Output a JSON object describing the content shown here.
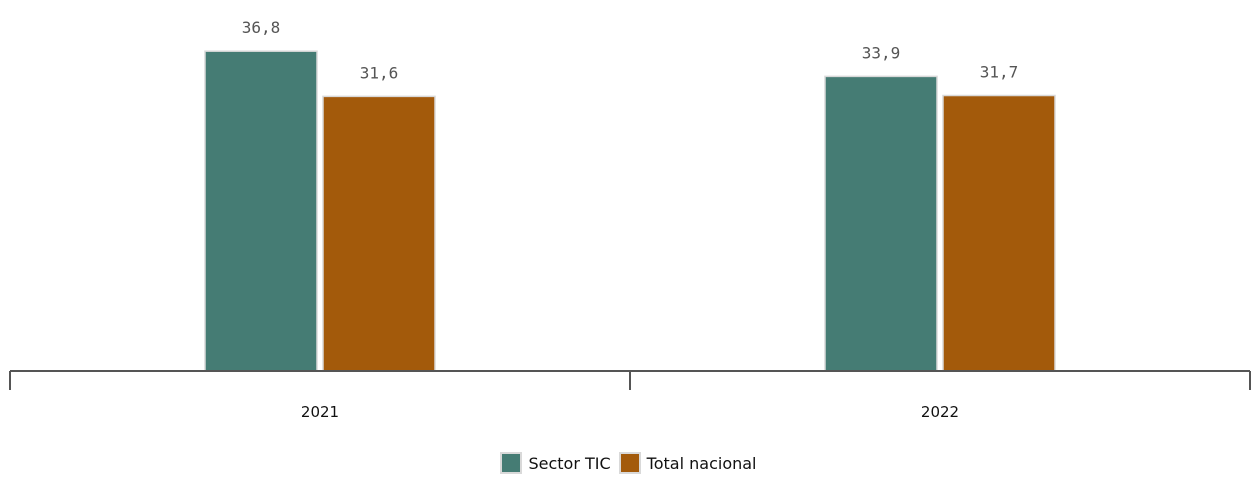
{
  "chart_data": {
    "type": "bar",
    "categories": [
      "2021",
      "2022"
    ],
    "series": [
      {
        "name": "Sector TIC",
        "values": [
          36.8,
          33.9
        ],
        "labels": [
          "36,8",
          "33,9"
        ],
        "color": "#457c74"
      },
      {
        "name": "Total nacional",
        "values": [
          31.6,
          31.7
        ],
        "labels": [
          "31,6",
          "31,7"
        ],
        "color": "#a35a0b"
      }
    ],
    "ylim": [
      0,
      42
    ],
    "grid": false,
    "legend_position": "bottom-center"
  }
}
